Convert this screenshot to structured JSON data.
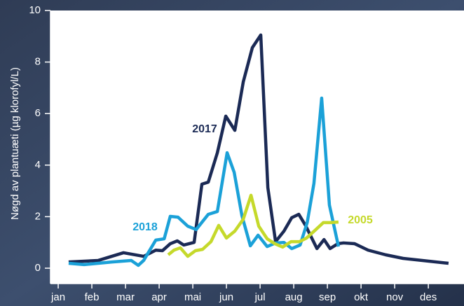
{
  "chart_data": {
    "type": "line",
    "y_label": "Nøgd av plantuæti (µg klorofyl/L)",
    "xlim": [
      0.77,
      13.06
    ],
    "ylim": [
      0,
      10
    ],
    "xticks": [
      {
        "value": 1,
        "label": "jan"
      },
      {
        "value": 2,
        "label": "feb"
      },
      {
        "value": 3,
        "label": "mar"
      },
      {
        "value": 4,
        "label": "apr"
      },
      {
        "value": 5,
        "label": "mai"
      },
      {
        "value": 6,
        "label": "jun"
      },
      {
        "value": 7,
        "label": "jul"
      },
      {
        "value": 8,
        "label": "aug"
      },
      {
        "value": 9,
        "label": "sep"
      },
      {
        "value": 10,
        "label": "okt"
      },
      {
        "value": 11,
        "label": "nov"
      },
      {
        "value": 12,
        "label": "des"
      }
    ],
    "yticks": [
      0,
      2,
      4,
      6,
      8,
      10
    ],
    "series": [
      {
        "name": "2017",
        "color": "#1b2a55",
        "x": [
          1.31,
          2.19,
          2.94,
          3.54,
          3.9,
          4.1,
          4.33,
          4.54,
          4.73,
          5.04,
          5.27,
          5.46,
          5.73,
          5.98,
          6.25,
          6.5,
          6.77,
          7.02,
          7.23,
          7.46,
          7.71,
          7.94,
          8.15,
          8.35,
          8.69,
          8.9,
          9.08,
          9.31,
          9.48,
          9.81,
          10.21,
          10.73,
          11.25,
          12.6
        ],
        "values": [
          0.24,
          0.3,
          0.6,
          0.46,
          0.7,
          0.68,
          0.95,
          1.06,
          0.9,
          1.0,
          3.26,
          3.34,
          4.48,
          5.9,
          5.35,
          7.23,
          8.56,
          9.05,
          3.13,
          1.03,
          1.44,
          1.96,
          2.09,
          1.66,
          0.76,
          1.11,
          0.76,
          0.95,
          0.98,
          0.95,
          0.7,
          0.52,
          0.38,
          0.19
        ]
      },
      {
        "name": "2018",
        "color": "#1ba1d8",
        "x": [
          1.31,
          1.77,
          2.6,
          3.17,
          3.38,
          3.54,
          3.9,
          4.15,
          4.33,
          4.56,
          4.85,
          5.1,
          5.46,
          5.73,
          6.02,
          6.23,
          6.46,
          6.71,
          6.94,
          7.21,
          7.46,
          7.71,
          7.94,
          8.19,
          8.4,
          8.6,
          8.83,
          9.06,
          9.33
        ],
        "values": [
          0.19,
          0.14,
          0.24,
          0.3,
          0.11,
          0.3,
          1.09,
          1.14,
          2.01,
          1.98,
          1.63,
          1.5,
          2.09,
          2.2,
          4.48,
          3.72,
          2.04,
          0.87,
          1.28,
          0.84,
          0.98,
          1.0,
          0.76,
          0.9,
          1.77,
          3.29,
          6.6,
          2.45,
          0.84
        ]
      },
      {
        "name": "2005",
        "color": "#c5d92b",
        "x": [
          4.27,
          4.44,
          4.63,
          4.85,
          5.08,
          5.29,
          5.54,
          5.77,
          6.0,
          6.25,
          6.5,
          6.73,
          6.96,
          7.21,
          7.44,
          7.67,
          7.92,
          8.17,
          8.38,
          8.65,
          8.88,
          9.08,
          9.33
        ],
        "values": [
          0.52,
          0.7,
          0.79,
          0.46,
          0.68,
          0.73,
          1.03,
          1.66,
          1.17,
          1.44,
          1.9,
          2.83,
          1.63,
          1.14,
          0.95,
          0.82,
          1.03,
          1.03,
          1.17,
          1.49,
          1.77,
          1.77,
          1.79
        ]
      }
    ]
  }
}
